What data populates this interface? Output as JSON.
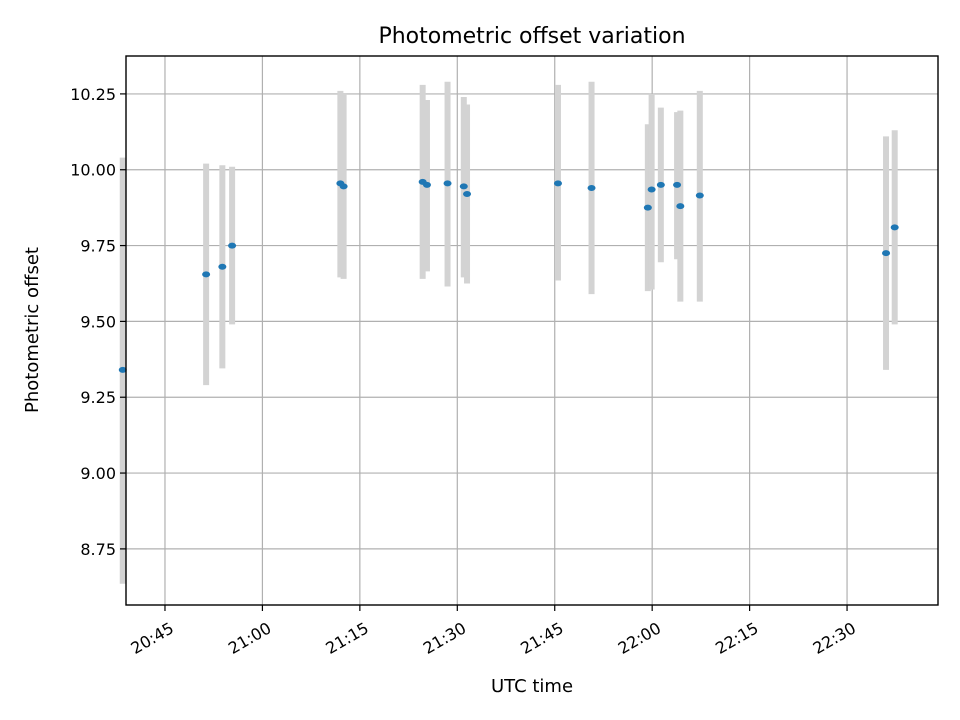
{
  "chart_data": {
    "type": "scatter",
    "title": "Photometric offset variation",
    "xlabel": "UTC time",
    "ylabel": "Photometric offset",
    "xlim": [
      "20:39",
      "22:44"
    ],
    "ylim": [
      8.565,
      10.375
    ],
    "grid": true,
    "x_ticks": [
      "20:45",
      "21:00",
      "21:15",
      "21:30",
      "21:45",
      "22:00",
      "22:15",
      "22:30"
    ],
    "y_ticks": [
      "8.75",
      "9.00",
      "9.25",
      "9.50",
      "9.75",
      "10.00",
      "10.25"
    ],
    "series": [
      {
        "marker_color": "#1f77b4",
        "errorbar_color": "#d3d3d3",
        "points": [
          {
            "t": "20:38:30",
            "y": 9.34,
            "y_low": 8.635,
            "y_high": 10.04
          },
          {
            "t": "20:51:20",
            "y": 9.655,
            "y_low": 9.29,
            "y_high": 10.02
          },
          {
            "t": "20:53:50",
            "y": 9.68,
            "y_low": 9.345,
            "y_high": 10.015
          },
          {
            "t": "20:55:20",
            "y": 9.75,
            "y_low": 9.49,
            "y_high": 10.01
          },
          {
            "t": "21:12:00",
            "y": 9.955,
            "y_low": 9.645,
            "y_high": 10.26
          },
          {
            "t": "21:12:30",
            "y": 9.945,
            "y_low": 9.64,
            "y_high": 10.25
          },
          {
            "t": "21:24:40",
            "y": 9.96,
            "y_low": 9.64,
            "y_high": 10.28
          },
          {
            "t": "21:25:20",
            "y": 9.95,
            "y_low": 9.665,
            "y_high": 10.23
          },
          {
            "t": "21:28:30",
            "y": 9.955,
            "y_low": 9.615,
            "y_high": 10.29
          },
          {
            "t": "21:31:00",
            "y": 9.945,
            "y_low": 9.645,
            "y_high": 10.24
          },
          {
            "t": "21:31:30",
            "y": 9.92,
            "y_low": 9.625,
            "y_high": 10.215
          },
          {
            "t": "21:45:30",
            "y": 9.955,
            "y_low": 9.635,
            "y_high": 10.28
          },
          {
            "t": "21:50:40",
            "y": 9.94,
            "y_low": 9.59,
            "y_high": 10.29
          },
          {
            "t": "21:59:20",
            "y": 9.875,
            "y_low": 9.6,
            "y_high": 10.15
          },
          {
            "t": "21:59:55",
            "y": 9.935,
            "y_low": 9.605,
            "y_high": 10.25
          },
          {
            "t": "22:01:20",
            "y": 9.95,
            "y_low": 9.695,
            "y_high": 10.205
          },
          {
            "t": "22:03:50",
            "y": 9.95,
            "y_low": 9.705,
            "y_high": 10.19
          },
          {
            "t": "22:04:20",
            "y": 9.88,
            "y_low": 9.565,
            "y_high": 10.195
          },
          {
            "t": "22:07:20",
            "y": 9.915,
            "y_low": 9.565,
            "y_high": 10.26
          },
          {
            "t": "22:36:00",
            "y": 9.725,
            "y_low": 9.34,
            "y_high": 10.11
          },
          {
            "t": "22:37:20",
            "y": 9.81,
            "y_low": 9.49,
            "y_high": 10.13
          }
        ]
      }
    ]
  }
}
